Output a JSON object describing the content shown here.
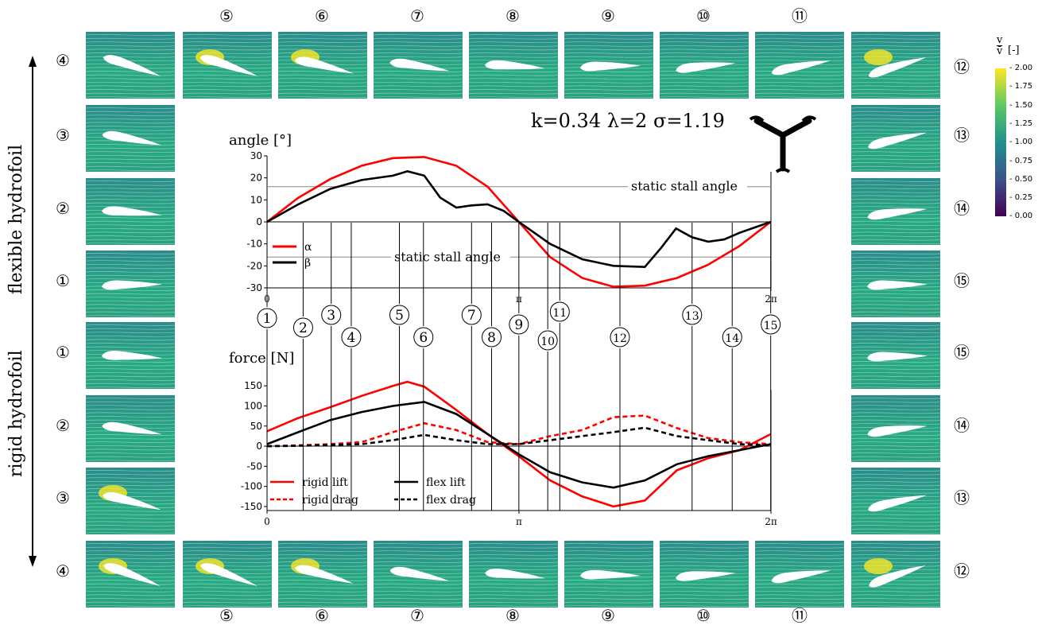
{
  "params": "k=0.34  λ=2  σ=1.19",
  "labels": {
    "flexible": "flexible hydrofoil",
    "rigid": "rigid hydrofoil"
  },
  "colorbar": {
    "title_num": "v",
    "title_den": "v̄",
    "title_unit": "[-]",
    "ticks": [
      "2.00",
      "1.75",
      "1.50",
      "1.25",
      "1.00",
      "0.75",
      "0.50",
      "0.25",
      "0.00"
    ]
  },
  "tiles": {
    "top": [
      "5",
      "6",
      "7",
      "8",
      "9",
      "10",
      "11"
    ],
    "bottom": [
      "5",
      "6",
      "7",
      "8",
      "9",
      "10",
      "11"
    ],
    "left_flex": [
      "4",
      "3",
      "2",
      "1"
    ],
    "left_rigid": [
      "1",
      "2",
      "3",
      "4"
    ],
    "right_flex": [
      "12",
      "13",
      "14",
      "15"
    ],
    "right_rigid": [
      "15",
      "14",
      "13",
      "12"
    ]
  },
  "chart_data": [
    {
      "type": "line",
      "title": "",
      "ylabel": "angle [°]",
      "xlabel": "",
      "xlim": [
        0,
        6.2832
      ],
      "ylim": [
        -30,
        30
      ],
      "yticks": [
        "30",
        "20",
        "10",
        "0",
        "-10",
        "-20",
        "-30"
      ],
      "xticks": [
        "0",
        "π",
        "2π"
      ],
      "legend": "lower-left",
      "hlines": [
        {
          "y": 16,
          "label": "static stall angle"
        },
        {
          "y": -16,
          "label": "static stall angle"
        }
      ],
      "series": [
        {
          "name": "α",
          "color": "#ff0000",
          "x": [
            0,
            0.39,
            0.79,
            1.18,
            1.57,
            1.96,
            2.36,
            2.75,
            3.14,
            3.53,
            3.93,
            4.32,
            4.71,
            5.11,
            5.5,
            5.89,
            6.28
          ],
          "y": [
            0,
            11,
            19.5,
            25.5,
            29,
            29.5,
            25.5,
            16,
            0,
            -16,
            -25.5,
            -29.5,
            -29,
            -25.5,
            -19.5,
            -11,
            0
          ]
        },
        {
          "name": "β",
          "color": "#000000",
          "x": [
            0,
            0.39,
            0.79,
            1.18,
            1.57,
            1.75,
            1.96,
            2.16,
            2.36,
            2.55,
            2.75,
            2.95,
            3.14,
            3.53,
            3.93,
            4.32,
            4.71,
            4.91,
            5.1,
            5.3,
            5.5,
            5.7,
            5.89,
            6.28
          ],
          "y": [
            0,
            8,
            15,
            19,
            21,
            23,
            21,
            11,
            6.5,
            7.5,
            8,
            5,
            0,
            -10,
            -17,
            -20,
            -20.5,
            -12,
            -3,
            -7,
            -9,
            -8,
            -5,
            0
          ]
        }
      ],
      "markers": [
        {
          "n": "1",
          "x": 0
        },
        {
          "n": "2",
          "x": 0.45
        },
        {
          "n": "3",
          "x": 0.8
        },
        {
          "n": "4",
          "x": 1.05
        },
        {
          "n": "5",
          "x": 1.65
        },
        {
          "n": "6",
          "x": 1.95
        },
        {
          "n": "7",
          "x": 2.55
        },
        {
          "n": "8",
          "x": 2.8
        },
        {
          "n": "9",
          "x": 3.14
        },
        {
          "n": "10",
          "x": 3.5
        },
        {
          "n": "11",
          "x": 3.65
        },
        {
          "n": "12",
          "x": 4.4
        },
        {
          "n": "13",
          "x": 5.3
        },
        {
          "n": "14",
          "x": 5.8
        },
        {
          "n": "15",
          "x": 6.28
        }
      ]
    },
    {
      "type": "line",
      "title": "",
      "ylabel": "force [N]",
      "xlabel": "",
      "xlim": [
        0,
        6.2832
      ],
      "ylim": [
        -160,
        180
      ],
      "yticks": [
        "150",
        "100",
        "50",
        "0",
        "-50",
        "-100",
        "-150"
      ],
      "xticks": [
        "0",
        "π",
        "2π"
      ],
      "legend": "lower-left",
      "series": [
        {
          "name": "rigid lift",
          "color": "#ff0000",
          "dash": false,
          "x": [
            0,
            0.39,
            0.79,
            1.18,
            1.57,
            1.75,
            1.96,
            2.36,
            2.75,
            3.14,
            3.53,
            3.93,
            4.32,
            4.71,
            5.11,
            5.5,
            5.89,
            6.28
          ],
          "y": [
            37,
            70,
            97,
            125,
            150,
            160,
            148,
            90,
            30,
            -25,
            -85,
            -125,
            -150,
            -135,
            -60,
            -30,
            -10,
            30
          ]
        },
        {
          "name": "rigid drag",
          "color": "#ff0000",
          "dash": true,
          "x": [
            0,
            0.39,
            0.79,
            1.18,
            1.57,
            1.96,
            2.36,
            2.75,
            3.14,
            3.53,
            3.93,
            4.32,
            4.71,
            5.11,
            5.5,
            5.89,
            6.28
          ],
          "y": [
            0,
            2,
            5,
            10,
            35,
            57,
            40,
            10,
            5,
            25,
            40,
            72,
            76,
            45,
            20,
            10,
            5
          ]
        },
        {
          "name": "flex lift",
          "color": "#000000",
          "dash": false,
          "x": [
            0,
            0.39,
            0.79,
            1.18,
            1.57,
            1.96,
            2.36,
            2.75,
            3.14,
            3.53,
            3.93,
            4.32,
            4.71,
            5.11,
            5.5,
            5.89,
            6.28
          ],
          "y": [
            5,
            35,
            65,
            85,
            100,
            110,
            80,
            30,
            -20,
            -65,
            -90,
            -103,
            -85,
            -45,
            -25,
            -10,
            5
          ]
        },
        {
          "name": "flex drag",
          "color": "#000000",
          "dash": true,
          "x": [
            0,
            0.39,
            0.79,
            1.18,
            1.57,
            1.96,
            2.36,
            2.75,
            3.14,
            3.53,
            3.93,
            4.32,
            4.71,
            5.11,
            5.5,
            5.89,
            6.28
          ],
          "y": [
            0,
            1,
            3,
            5,
            15,
            28,
            15,
            5,
            5,
            15,
            25,
            35,
            46,
            25,
            15,
            5,
            2
          ]
        }
      ]
    }
  ]
}
